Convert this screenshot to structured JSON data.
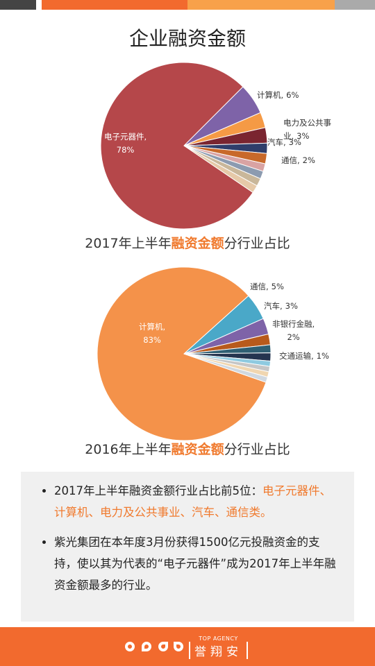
{
  "header": {
    "title": "企业融资金额"
  },
  "chart_data": [
    {
      "type": "pie",
      "title_parts": [
        "2017年上半年",
        "融资金额",
        "分行业占比"
      ],
      "categories": [
        "电子元器件,",
        "计算机,",
        "电力及公共事业,",
        "汽车,",
        "通信,",
        null,
        null,
        null,
        null,
        null
      ],
      "values": [
        78,
        6,
        3,
        3,
        2,
        2,
        1.5,
        1.5,
        1.5,
        1.5
      ],
      "value_labels": [
        "78%",
        "6%",
        "3%",
        "3%",
        "2%",
        null,
        null,
        null,
        null,
        null
      ],
      "colors": [
        "#b5474a",
        "#7e63a8",
        "#f59a45",
        "#7a2530",
        "#2f3e6b",
        "#c8692a",
        "#d9a3a3",
        "#8c9bb0",
        "#c9b79a",
        "#e6c9a8"
      ]
    },
    {
      "type": "pie",
      "title_parts": [
        "2016年上半年",
        "融资金额",
        "分行业占比"
      ],
      "categories": [
        "计算机,",
        "通信,",
        "汽车,",
        "非银行金融,",
        null,
        null,
        "交通运输,",
        null,
        null,
        null
      ],
      "values": [
        83,
        5,
        3,
        2,
        1.5,
        1.5,
        1,
        1,
        1,
        1
      ],
      "value_labels": [
        "83%",
        "5%",
        "3%",
        "2%",
        null,
        null,
        "1%",
        null,
        null,
        null
      ],
      "colors": [
        "#f4924a",
        "#4aa8c8",
        "#7e63a8",
        "#b85a1c",
        "#2f5f73",
        "#24344f",
        "#8ecae0",
        "#c6c6c6",
        "#f0d6b0",
        "#d0d8e0"
      ]
    }
  ],
  "bullets": [
    [
      "2017年上半年融资金额行业占比前5位：",
      "电子元器件、计算机、电力及公共事业、汽车、通信类。"
    ],
    [
      "紫光集团在本年度3月份获得1500亿元投融资金的支持，使以其为代表的“电子元器件”成为2017年上半年融资金额最多的行业。"
    ]
  ],
  "footer": {
    "tagline": "TOP AGENCY",
    "name": "誉翔安"
  }
}
